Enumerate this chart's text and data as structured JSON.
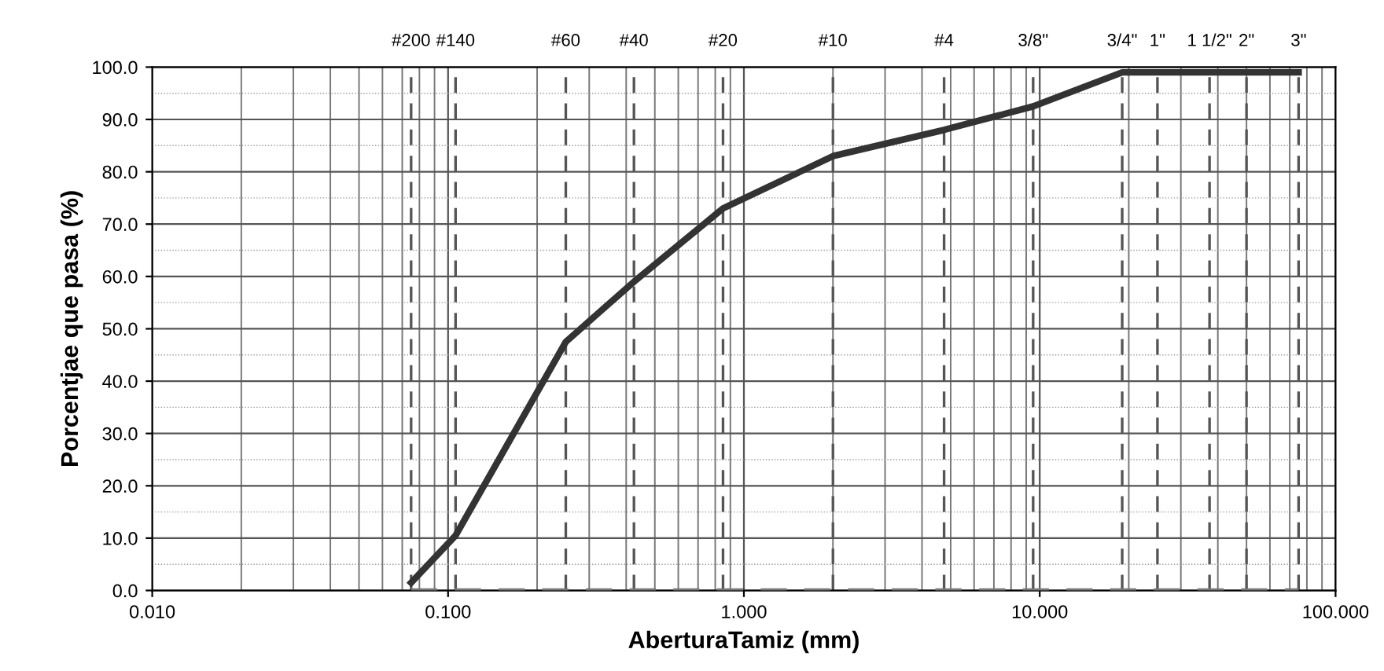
{
  "chart_data": {
    "type": "line",
    "xlabel": "AberturaTamiz (mm)",
    "ylabel": "Porcentjae que pasa (%)",
    "log": "x",
    "grid": true,
    "marker": "none",
    "xlim": [
      0.01,
      100
    ],
    "xticks": [
      {
        "value": 0.01,
        "label": "0.010"
      },
      {
        "value": 0.1,
        "label": "0.100"
      },
      {
        "value": 1,
        "label": "1.000"
      },
      {
        "value": 10,
        "label": "10.000"
      },
      {
        "value": 100,
        "label": "100.000"
      }
    ],
    "ylim": [
      0,
      100
    ],
    "yticks": [
      {
        "value": 0,
        "label": "0.0"
      },
      {
        "value": 10,
        "label": "10.0"
      },
      {
        "value": 20,
        "label": "20.0"
      },
      {
        "value": 30,
        "label": "30.0"
      },
      {
        "value": 40,
        "label": "40.0"
      },
      {
        "value": 50,
        "label": "50.0"
      },
      {
        "value": 60,
        "label": "60.0"
      },
      {
        "value": 70,
        "label": "70.0"
      },
      {
        "value": 80,
        "label": "80.0"
      },
      {
        "value": 90,
        "label": "90.0"
      },
      {
        "value": 100,
        "label": "100.0"
      }
    ],
    "ref_lines": [
      {
        "axis": "x",
        "value": 0.075,
        "line_style": "dashed",
        "color": "#555555"
      },
      {
        "axis": "x",
        "value": 0.106,
        "line_style": "dashed",
        "color": "#555555"
      },
      {
        "axis": "x",
        "value": 0.25,
        "line_style": "dashed",
        "color": "#555555"
      },
      {
        "axis": "x",
        "value": 0.425,
        "line_style": "dashed",
        "color": "#555555"
      },
      {
        "axis": "x",
        "value": 0.85,
        "line_style": "dashed",
        "color": "#555555"
      },
      {
        "axis": "x",
        "value": 2,
        "line_style": "dashed",
        "color": "#555555"
      },
      {
        "axis": "x",
        "value": 4.75,
        "line_style": "dashed",
        "color": "#555555"
      },
      {
        "axis": "x",
        "value": 9.5,
        "line_style": "dashed",
        "color": "#555555"
      },
      {
        "axis": "x",
        "value": 19,
        "line_style": "dashed",
        "color": "#555555"
      },
      {
        "axis": "x",
        "value": 25,
        "line_style": "dashed",
        "color": "#555555"
      },
      {
        "axis": "x",
        "value": 37.5,
        "line_style": "dashed",
        "color": "#555555"
      },
      {
        "axis": "x",
        "value": 50,
        "line_style": "dashed",
        "color": "#555555"
      },
      {
        "axis": "x",
        "value": 75,
        "line_style": "dashed",
        "color": "#555555"
      }
    ],
    "annotations": [
      {
        "text": "#200",
        "x": 0.075,
        "y": 100
      },
      {
        "text": "#140",
        "x": 0.106,
        "y": 100
      },
      {
        "text": "#60",
        "x": 0.25,
        "y": 100
      },
      {
        "text": "#40",
        "x": 0.425,
        "y": 100
      },
      {
        "text": "#20",
        "x": 0.85,
        "y": 100
      },
      {
        "text": "#10",
        "x": 2,
        "y": 100
      },
      {
        "text": "#4",
        "x": 4.75,
        "y": 100
      },
      {
        "text": "3/8\"",
        "x": 9.5,
        "y": 100
      },
      {
        "text": "3/4\"",
        "x": 19,
        "y": 100
      },
      {
        "text": "1\"",
        "x": 25,
        "y": 100
      },
      {
        "text": "1 1/2\"",
        "x": 37.5,
        "y": 100
      },
      {
        "text": "2\"",
        "x": 50,
        "y": 100
      },
      {
        "text": "3\"",
        "x": 75,
        "y": 100
      }
    ],
    "series": [
      {
        "color": "#333333",
        "line_style": "solid",
        "x": [
          0.075,
          0.106,
          0.25,
          0.425,
          0.85,
          2,
          4.75,
          9.5,
          19,
          25,
          37.5,
          50,
          75
        ],
        "values": [
          1.5,
          10.5,
          47.5,
          59,
          73,
          83,
          88,
          92.5,
          99,
          99,
          99,
          99,
          99
        ]
      },
      {
        "color": "#777777",
        "line_style": "dashed",
        "x": [
          0.075,
          0.106,
          0.25,
          0.425,
          0.85,
          2,
          4.75,
          9.5,
          19,
          25,
          37.5,
          50,
          75
        ],
        "values": [
          0,
          0,
          0,
          0,
          0,
          0,
          0,
          0,
          0,
          0,
          0,
          0,
          0
        ]
      }
    ]
  }
}
